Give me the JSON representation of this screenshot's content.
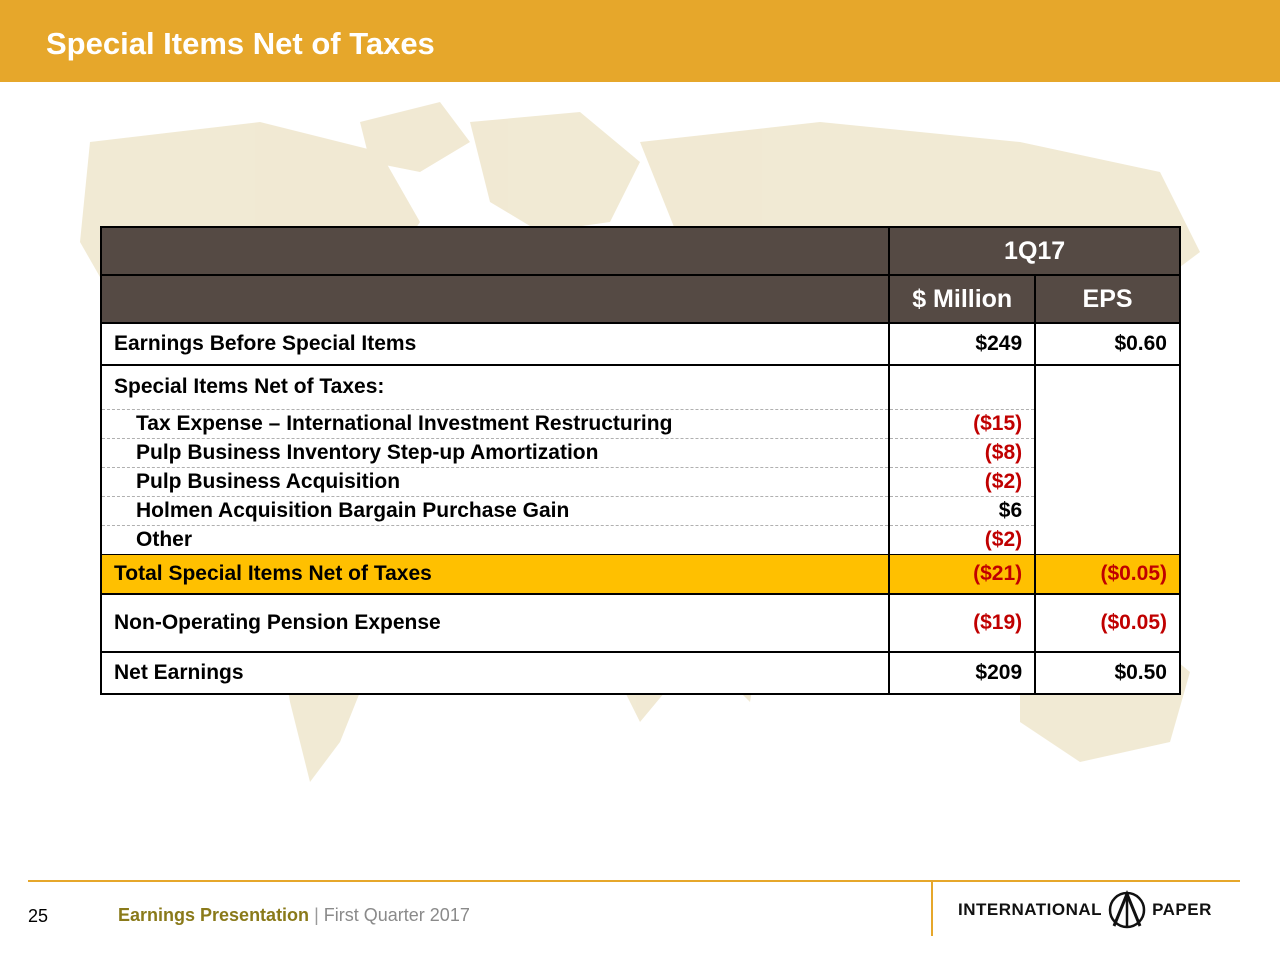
{
  "header": {
    "title": "Special Items Net of Taxes"
  },
  "table": {
    "period": "1Q17",
    "col_million": "$ Million",
    "col_eps": "EPS",
    "ebsi": {
      "label": "Earnings Before Special Items",
      "million": "$249",
      "eps": "$0.60"
    },
    "special_header": "Special Items Net of Taxes:",
    "items": [
      {
        "label": "Tax Expense – International Investment Restructuring",
        "million": "($15)"
      },
      {
        "label": "Pulp Business Inventory Step-up Amortization",
        "million": "($8)"
      },
      {
        "label": "Pulp Business Acquisition",
        "million": "($2)"
      },
      {
        "label": "Holmen Acquisition Bargain Purchase Gain",
        "million": "$6"
      },
      {
        "label": "Other",
        "million": "($2)"
      }
    ],
    "total": {
      "label": "Total Special Items Net of Taxes",
      "million": "($21)",
      "eps": "($0.05)"
    },
    "pension": {
      "label": "Non-Operating Pension Expense",
      "million": "($19)",
      "eps": "($0.05)"
    },
    "net": {
      "label": "Net Earnings",
      "million": "$209",
      "eps": "$0.50"
    }
  },
  "footer": {
    "page_number": "25",
    "presentation": "Earnings Presentation",
    "separator": "|",
    "period": "First Quarter 2017",
    "logo_left": "INTERNATIONAL",
    "logo_right": "PAPER"
  },
  "colors": {
    "title_bar": "#e6a72b",
    "table_header": "#554a44",
    "total_highlight": "#ffc000",
    "negative": "#c00000",
    "map": "#efe6cc"
  }
}
